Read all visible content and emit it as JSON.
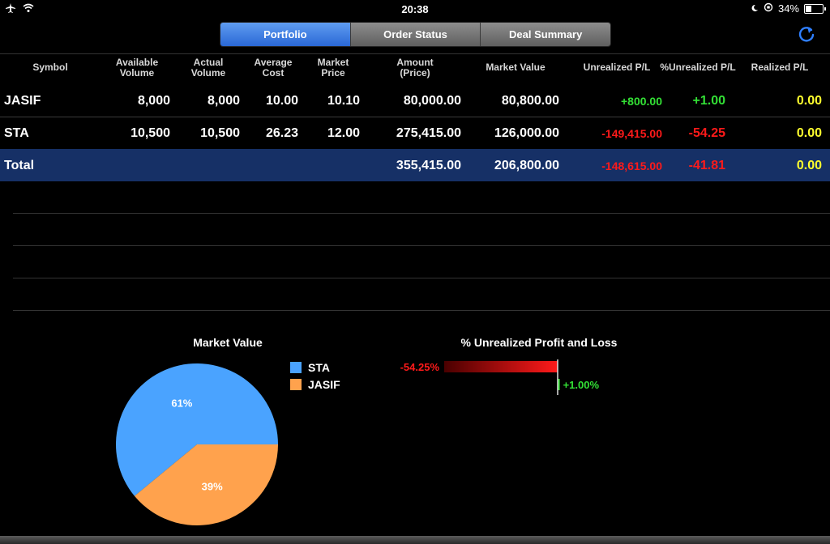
{
  "status_bar": {
    "time": "20:38",
    "battery": "34%",
    "battery_level": 0.34
  },
  "tabs": [
    {
      "label": "Portfolio",
      "active": true
    },
    {
      "label": "Order Status",
      "active": false
    },
    {
      "label": "Deal Summary",
      "active": false
    }
  ],
  "table": {
    "headers": {
      "symbol": "Symbol",
      "available_volume": [
        "Available",
        "Volume"
      ],
      "actual_volume": [
        "Actual",
        "Volume"
      ],
      "average_cost": [
        "Average",
        "Cost"
      ],
      "market_price": [
        "Market",
        "Price"
      ],
      "amount": [
        "Amount",
        "(Price)"
      ],
      "market_value": "Market Value",
      "unrealized_pl": "Unrealized P/L",
      "pct_unrealized_pl": "%Unrealized P/L",
      "realized_pl": "Realized P/L"
    },
    "rows": [
      {
        "symbol": "JASIF",
        "available_volume": "8,000",
        "actual_volume": "8,000",
        "average_cost": "10.00",
        "market_price": "10.10",
        "amount": "80,000.00",
        "market_value": "80,800.00",
        "unrealized_pl": "+800.00",
        "pct_unrealized_pl": "+1.00",
        "realized_pl": "0.00"
      },
      {
        "symbol": "STA",
        "available_volume": "10,500",
        "actual_volume": "10,500",
        "average_cost": "26.23",
        "market_price": "12.00",
        "amount": "275,415.00",
        "market_value": "126,000.00",
        "unrealized_pl": "-149,415.00",
        "pct_unrealized_pl": "-54.25",
        "realized_pl": "0.00"
      }
    ],
    "total": {
      "symbol": "Total",
      "amount": "355,415.00",
      "market_value": "206,800.00",
      "unrealized_pl": "-148,615.00",
      "pct_unrealized_pl": "-41.81",
      "realized_pl": "0.00"
    }
  },
  "market_value_chart": {
    "title": "Market Value",
    "slices": [
      {
        "name": "STA",
        "value": 61,
        "label": "61%",
        "color": "#4aa3ff"
      },
      {
        "name": "JASIF",
        "value": 39,
        "label": "39%",
        "color": "#ffa24d"
      }
    ]
  },
  "pl_chart": {
    "title": "% Unrealized Profit and Loss",
    "bars": [
      {
        "value": -54.25,
        "label": "-54.25%",
        "color": "#ff1a1a"
      },
      {
        "value": 1.0,
        "label": "+1.00%",
        "color": "#33e035"
      }
    ]
  },
  "chart_data": [
    {
      "type": "pie",
      "title": "Market Value",
      "categories": [
        "STA",
        "JASIF"
      ],
      "values": [
        61,
        39
      ]
    },
    {
      "type": "bar",
      "title": "% Unrealized Profit and Loss",
      "values": [
        -54.25,
        1.0
      ]
    }
  ]
}
